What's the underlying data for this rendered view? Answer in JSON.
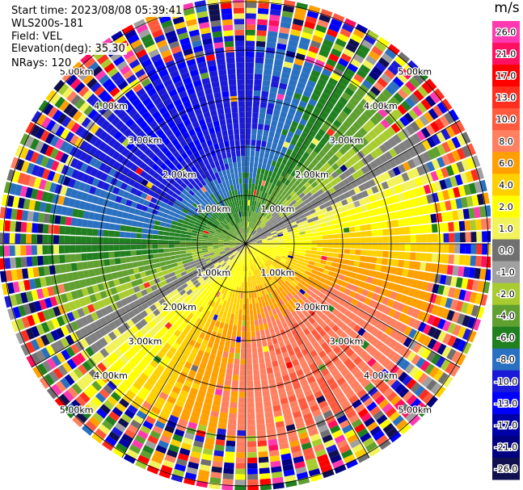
{
  "info": {
    "start_time": "Start time: 2023/08/08 05:39:41",
    "instrument": "WLS200s-181",
    "field": "Field: VEL",
    "elevation": "Elevation(deg): 35.30",
    "nrays": "NRays: 120"
  },
  "colorbar": {
    "unit": "m/s",
    "ticks": [
      "26.0",
      "21.0",
      "17.0",
      "13.0",
      "10.0",
      "8.0",
      "6.0",
      "4.0",
      "2.0",
      "1.0",
      "0.0",
      "-1.0",
      "-2.0",
      "-4.0",
      "-6.0",
      "-8.0",
      "-10.0",
      "-13.0",
      "-17.0",
      "-21.0",
      "-26.0",
      "-30.0"
    ],
    "colors": [
      "#ff3ab0",
      "#ff1060",
      "#ff0000",
      "#ff2e1e",
      "#ff5a3e",
      "#ff8060",
      "#ffa000",
      "#ffd000",
      "#ffff00",
      "#f2f25a",
      "#707070",
      "#a0a0a0",
      "#a8cc30",
      "#60a030",
      "#208020",
      "#2a70c0",
      "#1a1ad8",
      "#0000ff",
      "#0000a8",
      "#000080",
      "#101050"
    ]
  },
  "chart_data": {
    "type": "polar-ppi",
    "field": "VEL",
    "units": "m/s",
    "range_labels_km": [
      "1.00km",
      "2.00km",
      "3.00km",
      "4.00km",
      "5.00km"
    ],
    "range_rings_km": [
      1,
      2,
      3,
      4,
      5
    ],
    "approx_max_range_km": 5.1,
    "nrays": 120,
    "velocity_pattern": {
      "positive_sector_azimuth_deg": [
        60,
        240
      ],
      "negative_sector_azimuth_deg": [
        240,
        420
      ],
      "approx_peak_velocity_ms": 10,
      "noisy_beyond_km": 3.8
    }
  }
}
